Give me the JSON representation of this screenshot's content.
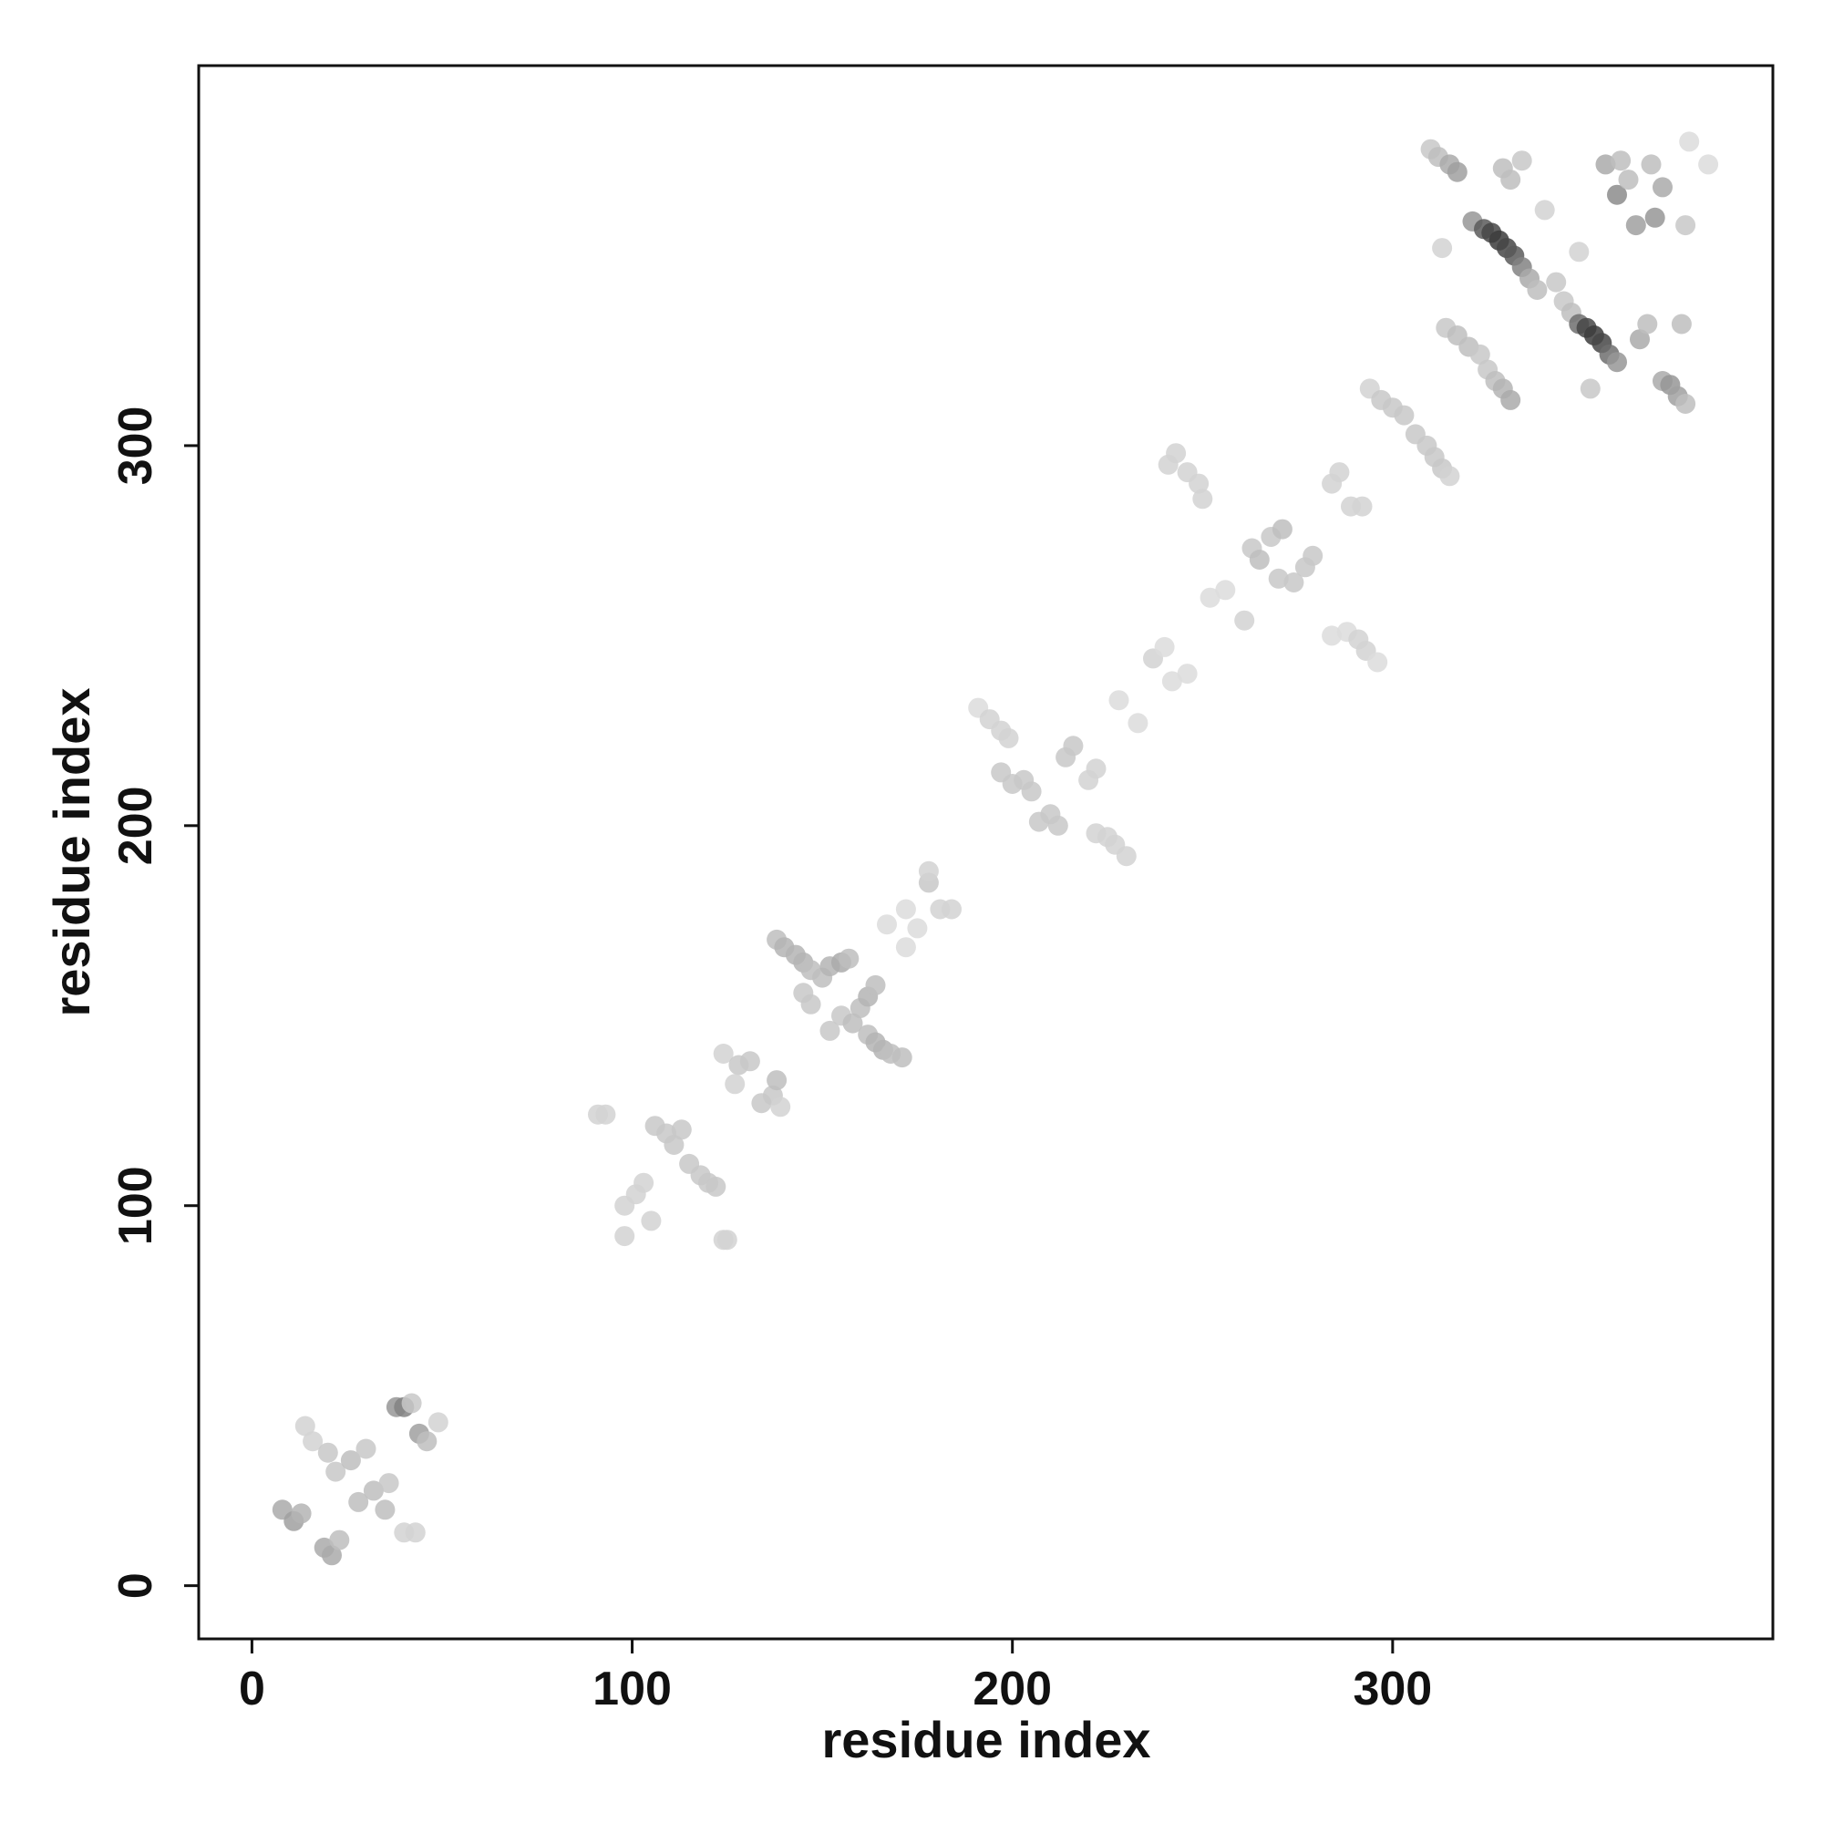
{
  "chart_data": {
    "type": "scatter",
    "title": "",
    "xlabel": "residue index",
    "ylabel": "residue index",
    "xlim": [
      -14,
      400
    ],
    "ylim": [
      -14,
      400
    ],
    "xticks": [
      0,
      100,
      200,
      300
    ],
    "yticks": [
      0,
      100,
      200,
      300
    ],
    "xtick_labels": [
      "0",
      "100",
      "200",
      "300"
    ],
    "ytick_labels": [
      "0",
      "100",
      "200",
      "300"
    ],
    "grid": false,
    "legend": "none",
    "marker_color_scale": "grayscale: light = low, dark = high value",
    "points": [
      {
        "x": 8,
        "y": 20,
        "v": 0.3
      },
      {
        "x": 11,
        "y": 17,
        "v": 0.35
      },
      {
        "x": 13,
        "y": 19,
        "v": 0.25
      },
      {
        "x": 14,
        "y": 42,
        "v": 0.1
      },
      {
        "x": 16,
        "y": 38,
        "v": 0.1
      },
      {
        "x": 19,
        "y": 10,
        "v": 0.3
      },
      {
        "x": 21,
        "y": 8,
        "v": 0.3
      },
      {
        "x": 23,
        "y": 12,
        "v": 0.2
      },
      {
        "x": 20,
        "y": 35,
        "v": 0.15
      },
      {
        "x": 22,
        "y": 30,
        "v": 0.15
      },
      {
        "x": 26,
        "y": 33,
        "v": 0.2
      },
      {
        "x": 28,
        "y": 22,
        "v": 0.2
      },
      {
        "x": 30,
        "y": 36,
        "v": 0.15
      },
      {
        "x": 32,
        "y": 25,
        "v": 0.2
      },
      {
        "x": 35,
        "y": 20,
        "v": 0.2
      },
      {
        "x": 36,
        "y": 27,
        "v": 0.15
      },
      {
        "x": 38,
        "y": 47,
        "v": 0.4
      },
      {
        "x": 40,
        "y": 47,
        "v": 0.5
      },
      {
        "x": 42,
        "y": 48,
        "v": 0.15
      },
      {
        "x": 44,
        "y": 40,
        "v": 0.35
      },
      {
        "x": 46,
        "y": 38,
        "v": 0.2
      },
      {
        "x": 49,
        "y": 43,
        "v": 0.1
      },
      {
        "x": 40,
        "y": 14,
        "v": 0.1
      },
      {
        "x": 43,
        "y": 14,
        "v": 0.1
      },
      {
        "x": 91,
        "y": 124,
        "v": 0.1
      },
      {
        "x": 93,
        "y": 124,
        "v": 0.1
      },
      {
        "x": 98,
        "y": 100,
        "v": 0.1
      },
      {
        "x": 101,
        "y": 103,
        "v": 0.1
      },
      {
        "x": 103,
        "y": 106,
        "v": 0.1
      },
      {
        "x": 98,
        "y": 92,
        "v": 0.1
      },
      {
        "x": 105,
        "y": 96,
        "v": 0.1
      },
      {
        "x": 106,
        "y": 121,
        "v": 0.15
      },
      {
        "x": 109,
        "y": 119,
        "v": 0.15
      },
      {
        "x": 111,
        "y": 116,
        "v": 0.15
      },
      {
        "x": 113,
        "y": 120,
        "v": 0.15
      },
      {
        "x": 115,
        "y": 111,
        "v": 0.15
      },
      {
        "x": 118,
        "y": 108,
        "v": 0.15
      },
      {
        "x": 120,
        "y": 106,
        "v": 0.15
      },
      {
        "x": 122,
        "y": 105,
        "v": 0.15
      },
      {
        "x": 124,
        "y": 91,
        "v": 0.1
      },
      {
        "x": 125,
        "y": 91,
        "v": 0.1
      },
      {
        "x": 124,
        "y": 140,
        "v": 0.1
      },
      {
        "x": 128,
        "y": 137,
        "v": 0.15
      },
      {
        "x": 131,
        "y": 138,
        "v": 0.15
      },
      {
        "x": 127,
        "y": 132,
        "v": 0.1
      },
      {
        "x": 134,
        "y": 127,
        "v": 0.15
      },
      {
        "x": 137,
        "y": 129,
        "v": 0.15
      },
      {
        "x": 139,
        "y": 126,
        "v": 0.1
      },
      {
        "x": 138,
        "y": 133,
        "v": 0.2
      },
      {
        "x": 138,
        "y": 170,
        "v": 0.2
      },
      {
        "x": 140,
        "y": 168,
        "v": 0.25
      },
      {
        "x": 143,
        "y": 166,
        "v": 0.25
      },
      {
        "x": 145,
        "y": 164,
        "v": 0.25
      },
      {
        "x": 147,
        "y": 162,
        "v": 0.2
      },
      {
        "x": 145,
        "y": 156,
        "v": 0.15
      },
      {
        "x": 147,
        "y": 153,
        "v": 0.15
      },
      {
        "x": 150,
        "y": 160,
        "v": 0.2
      },
      {
        "x": 152,
        "y": 163,
        "v": 0.25
      },
      {
        "x": 155,
        "y": 164,
        "v": 0.3
      },
      {
        "x": 157,
        "y": 165,
        "v": 0.2
      },
      {
        "x": 152,
        "y": 146,
        "v": 0.15
      },
      {
        "x": 155,
        "y": 150,
        "v": 0.15
      },
      {
        "x": 158,
        "y": 148,
        "v": 0.2
      },
      {
        "x": 160,
        "y": 152,
        "v": 0.2
      },
      {
        "x": 162,
        "y": 155,
        "v": 0.25
      },
      {
        "x": 164,
        "y": 158,
        "v": 0.2
      },
      {
        "x": 162,
        "y": 145,
        "v": 0.2
      },
      {
        "x": 164,
        "y": 143,
        "v": 0.25
      },
      {
        "x": 166,
        "y": 141,
        "v": 0.25
      },
      {
        "x": 168,
        "y": 140,
        "v": 0.2
      },
      {
        "x": 171,
        "y": 139,
        "v": 0.2
      },
      {
        "x": 167,
        "y": 174,
        "v": 0.05
      },
      {
        "x": 172,
        "y": 178,
        "v": 0.05
      },
      {
        "x": 172,
        "y": 168,
        "v": 0.05
      },
      {
        "x": 175,
        "y": 173,
        "v": 0.05
      },
      {
        "x": 178,
        "y": 185,
        "v": 0.15
      },
      {
        "x": 178,
        "y": 188,
        "v": 0.1
      },
      {
        "x": 181,
        "y": 178,
        "v": 0.1
      },
      {
        "x": 184,
        "y": 178,
        "v": 0.1
      },
      {
        "x": 191,
        "y": 231,
        "v": 0.05
      },
      {
        "x": 194,
        "y": 228,
        "v": 0.1
      },
      {
        "x": 197,
        "y": 225,
        "v": 0.1
      },
      {
        "x": 199,
        "y": 223,
        "v": 0.1
      },
      {
        "x": 197,
        "y": 214,
        "v": 0.15
      },
      {
        "x": 200,
        "y": 211,
        "v": 0.15
      },
      {
        "x": 203,
        "y": 212,
        "v": 0.15
      },
      {
        "x": 205,
        "y": 209,
        "v": 0.15
      },
      {
        "x": 207,
        "y": 201,
        "v": 0.15
      },
      {
        "x": 210,
        "y": 203,
        "v": 0.15
      },
      {
        "x": 212,
        "y": 200,
        "v": 0.15
      },
      {
        "x": 214,
        "y": 218,
        "v": 0.15
      },
      {
        "x": 216,
        "y": 221,
        "v": 0.15
      },
      {
        "x": 220,
        "y": 212,
        "v": 0.1
      },
      {
        "x": 222,
        "y": 215,
        "v": 0.1
      },
      {
        "x": 222,
        "y": 198,
        "v": 0.1
      },
      {
        "x": 225,
        "y": 197,
        "v": 0.1
      },
      {
        "x": 227,
        "y": 195,
        "v": 0.1
      },
      {
        "x": 230,
        "y": 192,
        "v": 0.1
      },
      {
        "x": 228,
        "y": 233,
        "v": 0.05
      },
      {
        "x": 233,
        "y": 227,
        "v": 0.05
      },
      {
        "x": 237,
        "y": 244,
        "v": 0.1
      },
      {
        "x": 240,
        "y": 247,
        "v": 0.05
      },
      {
        "x": 242,
        "y": 238,
        "v": 0.05
      },
      {
        "x": 246,
        "y": 240,
        "v": 0.05
      },
      {
        "x": 241,
        "y": 295,
        "v": 0.1
      },
      {
        "x": 243,
        "y": 298,
        "v": 0.1
      },
      {
        "x": 246,
        "y": 293,
        "v": 0.1
      },
      {
        "x": 249,
        "y": 290,
        "v": 0.1
      },
      {
        "x": 250,
        "y": 286,
        "v": 0.1
      },
      {
        "x": 252,
        "y": 260,
        "v": 0.05
      },
      {
        "x": 256,
        "y": 262,
        "v": 0.05
      },
      {
        "x": 261,
        "y": 254,
        "v": 0.1
      },
      {
        "x": 263,
        "y": 273,
        "v": 0.15
      },
      {
        "x": 265,
        "y": 270,
        "v": 0.2
      },
      {
        "x": 268,
        "y": 276,
        "v": 0.15
      },
      {
        "x": 271,
        "y": 278,
        "v": 0.2
      },
      {
        "x": 270,
        "y": 265,
        "v": 0.15
      },
      {
        "x": 274,
        "y": 264,
        "v": 0.15
      },
      {
        "x": 277,
        "y": 268,
        "v": 0.15
      },
      {
        "x": 279,
        "y": 271,
        "v": 0.15
      },
      {
        "x": 284,
        "y": 290,
        "v": 0.1
      },
      {
        "x": 286,
        "y": 293,
        "v": 0.1
      },
      {
        "x": 284,
        "y": 250,
        "v": 0.05
      },
      {
        "x": 288,
        "y": 251,
        "v": 0.05
      },
      {
        "x": 291,
        "y": 249,
        "v": 0.1
      },
      {
        "x": 293,
        "y": 246,
        "v": 0.1
      },
      {
        "x": 296,
        "y": 243,
        "v": 0.05
      },
      {
        "x": 289,
        "y": 284,
        "v": 0.1
      },
      {
        "x": 292,
        "y": 284,
        "v": 0.1
      },
      {
        "x": 294,
        "y": 315,
        "v": 0.1
      },
      {
        "x": 297,
        "y": 312,
        "v": 0.15
      },
      {
        "x": 300,
        "y": 310,
        "v": 0.15
      },
      {
        "x": 303,
        "y": 308,
        "v": 0.15
      },
      {
        "x": 306,
        "y": 303,
        "v": 0.15
      },
      {
        "x": 309,
        "y": 300,
        "v": 0.15
      },
      {
        "x": 311,
        "y": 297,
        "v": 0.15
      },
      {
        "x": 313,
        "y": 294,
        "v": 0.15
      },
      {
        "x": 315,
        "y": 292,
        "v": 0.1
      },
      {
        "x": 310,
        "y": 378,
        "v": 0.15
      },
      {
        "x": 312,
        "y": 376,
        "v": 0.2
      },
      {
        "x": 315,
        "y": 374,
        "v": 0.3
      },
      {
        "x": 317,
        "y": 372,
        "v": 0.35
      },
      {
        "x": 313,
        "y": 352,
        "v": 0.1
      },
      {
        "x": 314,
        "y": 331,
        "v": 0.15
      },
      {
        "x": 317,
        "y": 329,
        "v": 0.2
      },
      {
        "x": 320,
        "y": 326,
        "v": 0.2
      },
      {
        "x": 323,
        "y": 324,
        "v": 0.15
      },
      {
        "x": 321,
        "y": 359,
        "v": 0.4
      },
      {
        "x": 324,
        "y": 357,
        "v": 0.7
      },
      {
        "x": 326,
        "y": 356,
        "v": 0.8
      },
      {
        "x": 328,
        "y": 354,
        "v": 0.85
      },
      {
        "x": 330,
        "y": 352,
        "v": 0.8
      },
      {
        "x": 332,
        "y": 350,
        "v": 0.7
      },
      {
        "x": 334,
        "y": 347,
        "v": 0.5
      },
      {
        "x": 336,
        "y": 344,
        "v": 0.3
      },
      {
        "x": 338,
        "y": 341,
        "v": 0.2
      },
      {
        "x": 325,
        "y": 320,
        "v": 0.15
      },
      {
        "x": 327,
        "y": 317,
        "v": 0.2
      },
      {
        "x": 329,
        "y": 315,
        "v": 0.25
      },
      {
        "x": 331,
        "y": 312,
        "v": 0.3
      },
      {
        "x": 329,
        "y": 373,
        "v": 0.2
      },
      {
        "x": 331,
        "y": 370,
        "v": 0.2
      },
      {
        "x": 334,
        "y": 375,
        "v": 0.15
      },
      {
        "x": 340,
        "y": 362,
        "v": 0.1
      },
      {
        "x": 343,
        "y": 343,
        "v": 0.15
      },
      {
        "x": 345,
        "y": 338,
        "v": 0.15
      },
      {
        "x": 347,
        "y": 335,
        "v": 0.2
      },
      {
        "x": 349,
        "y": 351,
        "v": 0.1
      },
      {
        "x": 349,
        "y": 332,
        "v": 0.6
      },
      {
        "x": 351,
        "y": 331,
        "v": 0.8
      },
      {
        "x": 353,
        "y": 329,
        "v": 0.85
      },
      {
        "x": 355,
        "y": 327,
        "v": 0.8
      },
      {
        "x": 357,
        "y": 324,
        "v": 0.6
      },
      {
        "x": 359,
        "y": 322,
        "v": 0.4
      },
      {
        "x": 352,
        "y": 315,
        "v": 0.15
      },
      {
        "x": 356,
        "y": 374,
        "v": 0.3
      },
      {
        "x": 359,
        "y": 366,
        "v": 0.45
      },
      {
        "x": 360,
        "y": 375,
        "v": 0.2
      },
      {
        "x": 362,
        "y": 370,
        "v": 0.2
      },
      {
        "x": 364,
        "y": 358,
        "v": 0.35
      },
      {
        "x": 365,
        "y": 328,
        "v": 0.3
      },
      {
        "x": 367,
        "y": 332,
        "v": 0.2
      },
      {
        "x": 368,
        "y": 374,
        "v": 0.2
      },
      {
        "x": 369,
        "y": 360,
        "v": 0.4
      },
      {
        "x": 371,
        "y": 368,
        "v": 0.3
      },
      {
        "x": 371,
        "y": 317,
        "v": 0.3
      },
      {
        "x": 373,
        "y": 316,
        "v": 0.4
      },
      {
        "x": 375,
        "y": 313,
        "v": 0.35
      },
      {
        "x": 376,
        "y": 332,
        "v": 0.2
      },
      {
        "x": 377,
        "y": 358,
        "v": 0.15
      },
      {
        "x": 377,
        "y": 311,
        "v": 0.2
      },
      {
        "x": 378,
        "y": 380,
        "v": 0.05
      },
      {
        "x": 383,
        "y": 374,
        "v": 0.05
      }
    ]
  }
}
